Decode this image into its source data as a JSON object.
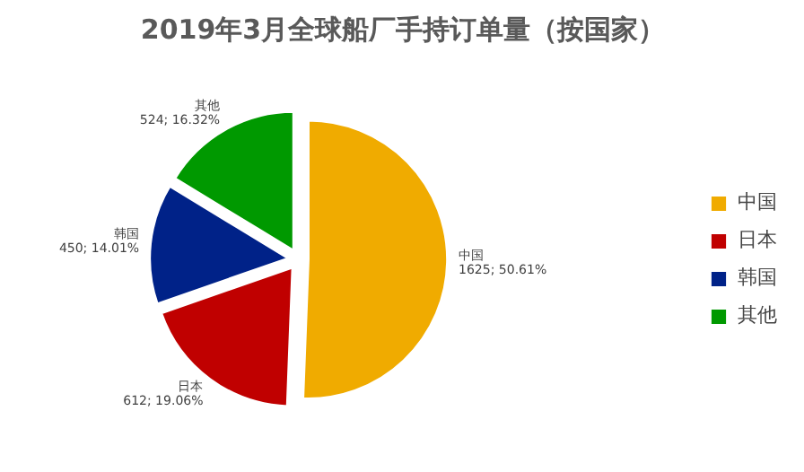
{
  "chart_data": {
    "type": "pie",
    "title": "2019年3月全球船厂手持订单量（按国家）",
    "categories": [
      "中国",
      "日本",
      "韩国",
      "其他"
    ],
    "values": [
      1625,
      612,
      450,
      524
    ],
    "colors": [
      "#f0ab00",
      "#c00000",
      "#002288",
      "#009900"
    ],
    "value_labels": [
      "1625; 50.61%",
      "612; 19.06%",
      "450; 14.01%",
      "524; 16.32%"
    ],
    "legend": "right"
  }
}
